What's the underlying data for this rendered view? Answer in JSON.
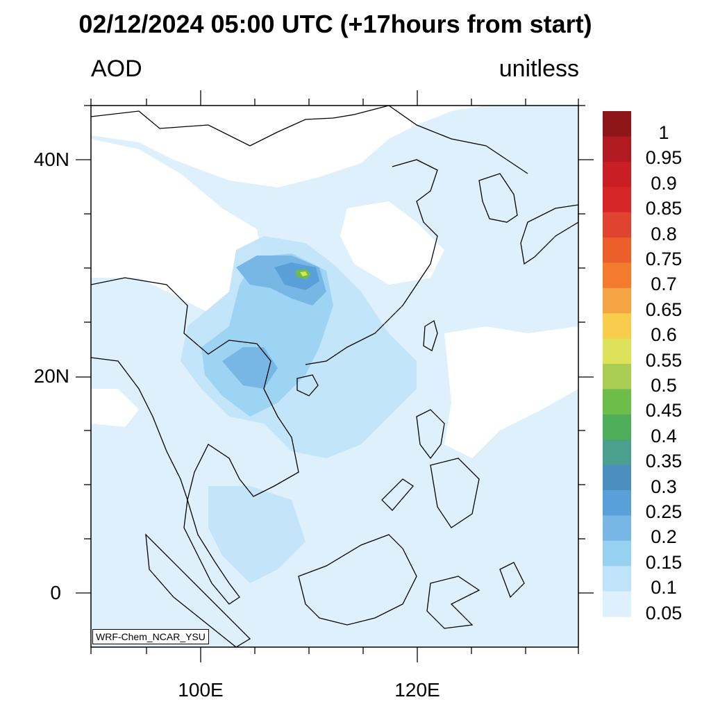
{
  "title": "02/12/2024 05:00 UTC (+17hours from start)",
  "variable_label": "AOD",
  "units_label": "unitless",
  "credit": "WRF-Chem_NCAR_YSU",
  "map": {
    "lon_labels": [
      "100E",
      "120E"
    ],
    "lat_labels": [
      "40N",
      "20N",
      "0"
    ]
  },
  "colorbar": {
    "labels": [
      "1",
      "0.95",
      "0.9",
      "0.85",
      "0.8",
      "0.75",
      "0.7",
      "0.65",
      "0.6",
      "0.55",
      "0.5",
      "0.45",
      "0.4",
      "0.35",
      "0.3",
      "0.25",
      "0.2",
      "0.15",
      "0.1",
      "0.05"
    ],
    "colors": [
      "#8e1518",
      "#b01a20",
      "#c81e24",
      "#d62628",
      "#e04430",
      "#ec5f2b",
      "#f47b2d",
      "#f5a443",
      "#f8cd4b",
      "#dde25a",
      "#a8cd52",
      "#6dbd4a",
      "#4fae5a",
      "#4aa08d",
      "#4b8fbe",
      "#5aa0d8",
      "#78b6e5",
      "#97d1f2",
      "#bfe3f8",
      "#ddf0fb"
    ]
  }
}
